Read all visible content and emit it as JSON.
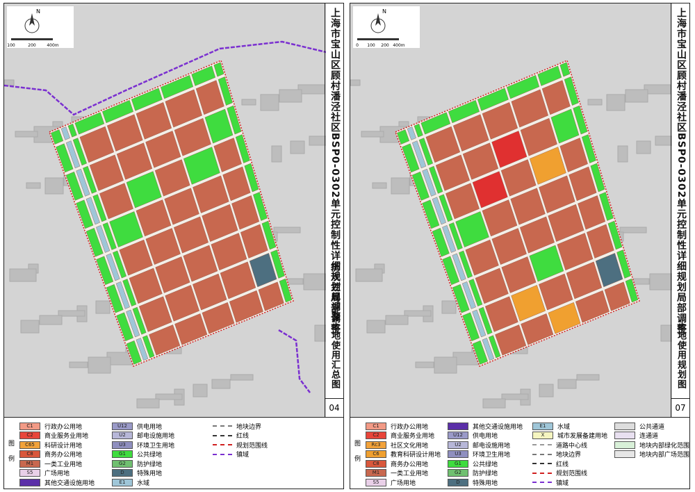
{
  "panels": [
    {
      "title": "上海市宝山区顾村潘泾社区BSP0-0302单元控制性详细规划局部调整",
      "subtitle": "历次控规调整土地使用汇总图",
      "number": "04",
      "north": "N",
      "scale": [
        "100",
        "200",
        "400m"
      ],
      "legend_label": [
        "图",
        "例"
      ],
      "legend": [
        [
          {
            "code": "C1",
            "label": "行政办公用地",
            "color": "#f29a86"
          },
          {
            "code": "C2",
            "label": "商业服务业用地",
            "color": "#e8453a"
          },
          {
            "code": "C65",
            "label": "科研设计用地",
            "color": "#f2a23a"
          },
          {
            "code": "C8",
            "label": "商务办公用地",
            "color": "#d9583c"
          },
          {
            "code": "M1",
            "label": "一类工业用地",
            "color": "#c8684f"
          },
          {
            "code": "S5",
            "label": "广场用地",
            "color": "#e9d0e8"
          },
          {
            "label": "其他交通设施用地",
            "color": "#5b2fa8"
          }
        ],
        [
          {
            "code": "U12",
            "label": "供电用地",
            "color": "#9a9ac8"
          },
          {
            "code": "U2",
            "label": "邮电设施用地",
            "color": "#b7b7d8"
          },
          {
            "code": "U3",
            "label": "环境卫生用地",
            "color": "#8f8fbf"
          },
          {
            "code": "G1",
            "label": "公共绿地",
            "color": "#3fdc3f"
          },
          {
            "code": "G2",
            "label": "防护绿地",
            "color": "#70c070"
          },
          {
            "code": "D",
            "label": "特殊用地",
            "color": "#4d6f80"
          },
          {
            "code": "E1",
            "label": "水域",
            "color": "#9fc6d8"
          }
        ],
        [
          {
            "label": "地块边界",
            "line": "#777777"
          },
          {
            "label": "红线",
            "line": "#333333"
          },
          {
            "label": "规划范围线",
            "line": "#d02020"
          },
          {
            "label": "镇域",
            "line": "#7a2fd0"
          }
        ]
      ]
    },
    {
      "title": "上海市宝山区顾村潘泾社区BSP0-0302单元控制性详细规划局部调整",
      "subtitle": "土地使用规划图",
      "number": "07",
      "north": "N",
      "scale": [
        "0",
        "100",
        "200",
        "400m"
      ],
      "legend_label": [
        "图",
        "例"
      ],
      "legend": [
        [
          {
            "code": "C1",
            "label": "行政办公用地",
            "color": "#f29a86"
          },
          {
            "code": "C2",
            "label": "商业服务业用地",
            "color": "#e8453a"
          },
          {
            "code": "Rc3",
            "label": "社区文化用地",
            "color": "#f2a23a"
          },
          {
            "code": "C6",
            "label": "教育科研设计用地",
            "color": "#f0a030"
          },
          {
            "code": "C8",
            "label": "商务办公用地",
            "color": "#d9583c"
          },
          {
            "code": "M1",
            "label": "一类工业用地",
            "color": "#c8684f"
          },
          {
            "code": "S5",
            "label": "广场用地",
            "color": "#e9d0e8"
          }
        ],
        [
          {
            "label": "其他交通设施用地",
            "color": "#5b2fa8"
          },
          {
            "code": "U12",
            "label": "供电用地",
            "color": "#9a9ac8"
          },
          {
            "code": "U2",
            "label": "邮电设施用地",
            "color": "#b7b7d8"
          },
          {
            "code": "U3",
            "label": "环境卫生用地",
            "color": "#8f8fbf"
          },
          {
            "code": "G1",
            "label": "公共绿地",
            "color": "#3fdc3f"
          },
          {
            "code": "G2",
            "label": "防护绿地",
            "color": "#70c070"
          },
          {
            "code": "D",
            "label": "特殊用地",
            "color": "#4d6f80"
          }
        ],
        [
          {
            "code": "E1",
            "label": "水域",
            "color": "#9fc6d8"
          },
          {
            "code": "X",
            "label": "城市发展备建用地",
            "color": "#f5f5c0"
          },
          {
            "label": "道路中心线",
            "line": "#999999"
          },
          {
            "label": "地块边界",
            "line": "#777777"
          },
          {
            "label": "红线",
            "line": "#333333"
          },
          {
            "label": "规划范围线",
            "line": "#d02020"
          },
          {
            "label": "镇域",
            "line": "#7a2fd0"
          }
        ],
        [
          {
            "label": "公共通道",
            "color": "#dddddd"
          },
          {
            "label": "连通道",
            "color": "#e8e0f0"
          },
          {
            "label": "地块内部绿化范围",
            "color": "#d8f0d8"
          },
          {
            "label": "地块内部广场范围",
            "color": "#e6e6e6"
          }
        ]
      ]
    }
  ]
}
